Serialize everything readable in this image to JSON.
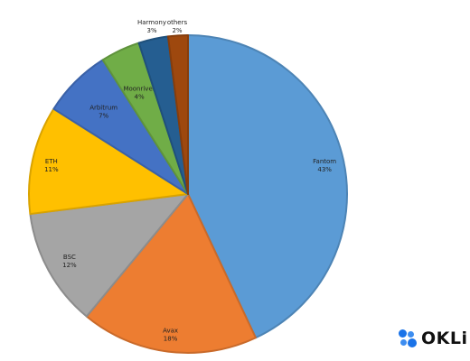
{
  "chart_data": {
    "type": "pie",
    "title": "",
    "slices": [
      {
        "label": "Fantom",
        "value": 43,
        "value_label": "43%",
        "color": "#5b9bd5"
      },
      {
        "label": "Avax",
        "value": 18,
        "value_label": "18%",
        "color": "#ed7d31"
      },
      {
        "label": "BSC",
        "value": 12,
        "value_label": "12%",
        "color": "#a5a5a5"
      },
      {
        "label": "ETH",
        "value": 11,
        "value_label": "11%",
        "color": "#ffc000"
      },
      {
        "label": "Arbitrum",
        "value": 7,
        "value_label": "7%",
        "color": "#4472c4"
      },
      {
        "label": "Moonriver",
        "value": 4,
        "value_label": "4%",
        "color": "#70ad47"
      },
      {
        "label": "Harmony",
        "value": 3,
        "value_label": "3%",
        "color": "#255e91"
      },
      {
        "label": "others",
        "value": 2,
        "value_label": "2%",
        "color": "#9e480e"
      }
    ],
    "start_angle": "12 o'clock",
    "direction": "clockwise",
    "legend": "none"
  },
  "brand": {
    "text": "OKLi"
  }
}
